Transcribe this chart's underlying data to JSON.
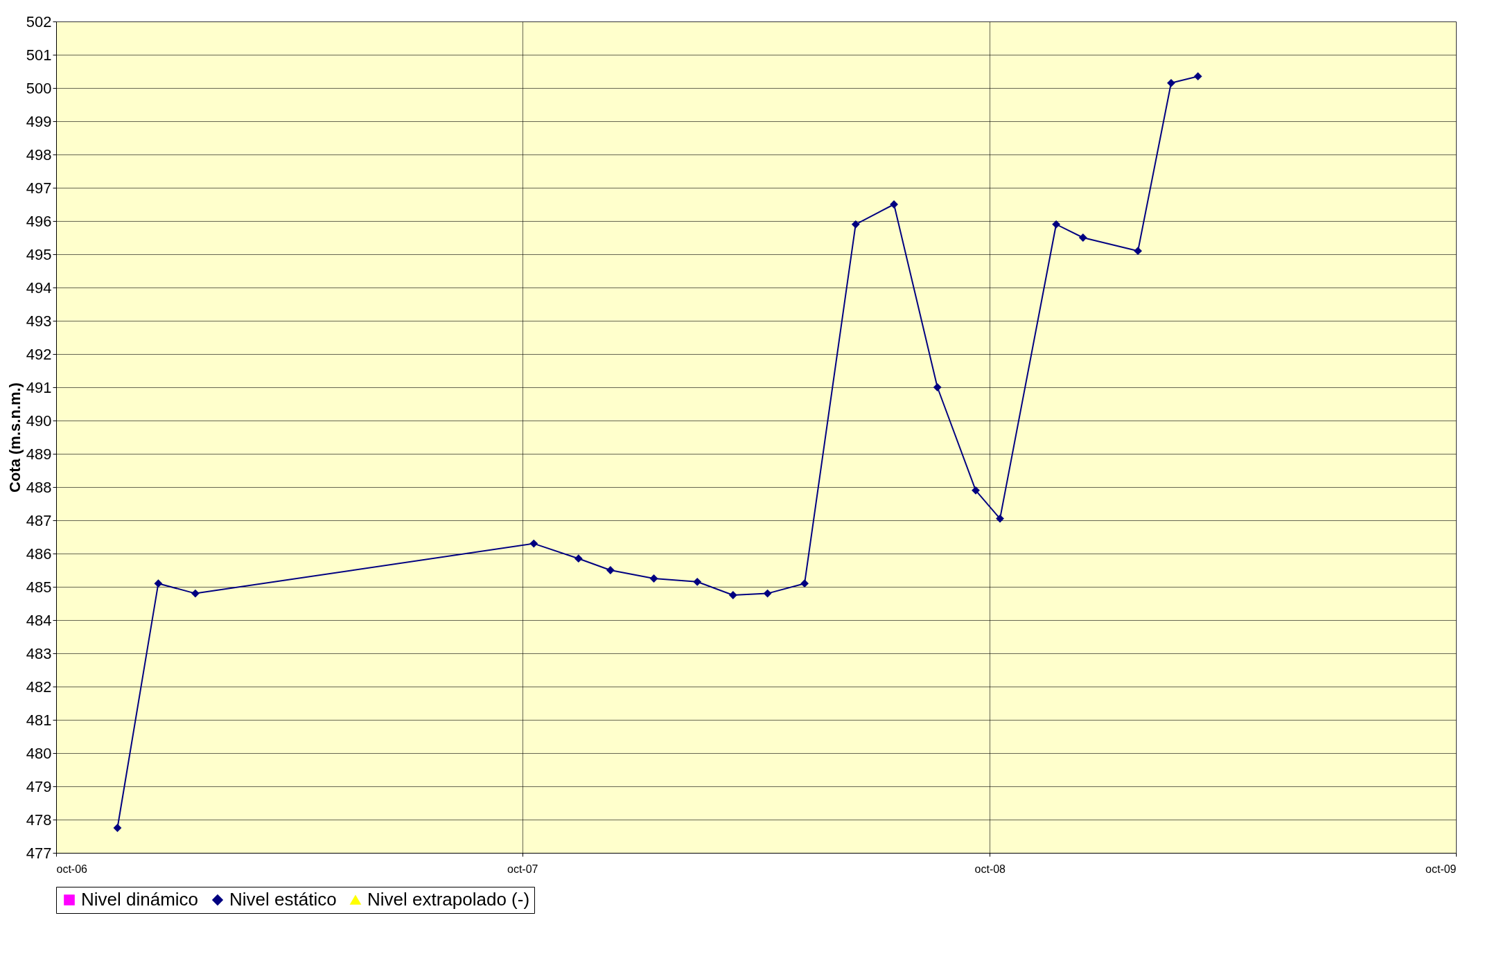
{
  "chart_data": {
    "type": "line",
    "ylabel": "Cota (m.s.n.m.)",
    "xlim": [
      "2006-10-01",
      "2009-10-01"
    ],
    "xticks": [
      {
        "value": "2006-10-01",
        "label": "oct-06"
      },
      {
        "value": "2007-10-01",
        "label": "oct-07"
      },
      {
        "value": "2008-10-01",
        "label": "oct-08"
      },
      {
        "value": "2009-10-01",
        "label": "oct-09"
      }
    ],
    "ylim": [
      477,
      502
    ],
    "yticks": [
      477,
      478,
      479,
      480,
      481,
      482,
      483,
      484,
      485,
      486,
      487,
      488,
      489,
      490,
      491,
      492,
      493,
      494,
      495,
      496,
      497,
      498,
      499,
      500,
      501,
      502
    ],
    "grid": true,
    "legend": "bottom",
    "line_style": "solid",
    "x": [
      "2006-11-18",
      "2006-12-20",
      "2007-01-18",
      "2007-10-10",
      "2007-11-14",
      "2007-12-09",
      "2008-01-12",
      "2008-02-15",
      "2008-03-14",
      "2008-04-10",
      "2008-05-09",
      "2008-06-18",
      "2008-07-18",
      "2008-08-21",
      "2008-09-20",
      "2008-10-09",
      "2008-11-22",
      "2008-12-13",
      "2009-01-25",
      "2009-02-20",
      "2009-03-13"
    ],
    "series": [
      {
        "name": "Nivel dinámico",
        "color": "#ff00ff",
        "marker": "square",
        "values": [
          null,
          null,
          null,
          null,
          null,
          null,
          null,
          null,
          null,
          null,
          null,
          null,
          null,
          null,
          null,
          null,
          null,
          null,
          null,
          null,
          null
        ]
      },
      {
        "name": "Nivel estático",
        "color": "#000080",
        "marker": "diamond",
        "values": [
          477.75,
          485.1,
          484.8,
          486.3,
          485.85,
          485.5,
          485.25,
          485.15,
          484.75,
          484.8,
          485.1,
          495.9,
          496.5,
          491.0,
          487.9,
          487.05,
          495.9,
          495.5,
          495.1,
          500.15,
          500.35
        ]
      },
      {
        "name": "Nivel extrapolado (-)",
        "color": "#ffff00",
        "marker": "triangle",
        "values": [
          null,
          null,
          null,
          null,
          null,
          null,
          null,
          null,
          null,
          null,
          null,
          null,
          null,
          null,
          null,
          null,
          null,
          null,
          null,
          null,
          null
        ]
      }
    ]
  }
}
